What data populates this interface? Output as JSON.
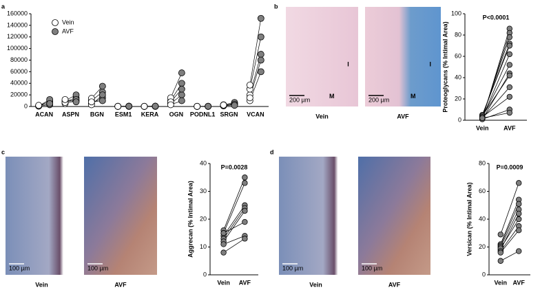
{
  "chart_data": [
    {
      "type": "paired-dot",
      "panel": "a",
      "categories": [
        "ACAN",
        "ASPN",
        "BGN",
        "ESM1",
        "KERA",
        "OGN",
        "PODNL1",
        "SRGN",
        "VCAN"
      ],
      "series": [
        {
          "name": "Vein",
          "color": "#ffffff",
          "values": [
            [
              500,
              1000,
              1500,
              800,
              2000
            ],
            [
              5000,
              8000,
              10000,
              7000,
              12000
            ],
            [
              5000,
              10000,
              14000,
              3000,
              8000
            ],
            [
              200,
              300,
              100,
              400,
              200
            ],
            [
              100,
              200,
              300,
              150,
              250
            ],
            [
              5000,
              10000,
              15000,
              8000,
              3000
            ],
            [
              100,
              200,
              300,
              150,
              200
            ],
            [
              1000,
              2000,
              3000,
              1500,
              2500
            ],
            [
              10000,
              20000,
              30000,
              37000,
              15000
            ]
          ]
        },
        {
          "name": "AVF",
          "color": "#7f7f7f",
          "values": [
            [
              3000,
              6000,
              9000,
              12000,
              5000
            ],
            [
              10000,
              15000,
              20000,
              12000,
              8000
            ],
            [
              15000,
              25000,
              35000,
              20000,
              10000
            ],
            [
              300,
              500,
              200,
              600,
              400
            ],
            [
              200,
              400,
              600,
              300,
              500
            ],
            [
              20000,
              40000,
              58000,
              30000,
              10000
            ],
            [
              200,
              300,
              400,
              250,
              300
            ],
            [
              3000,
              5000,
              7000,
              4000,
              2000
            ],
            [
              60000,
              90000,
              120000,
              152000,
              80000
            ]
          ]
        }
      ],
      "ylim": [
        0,
        160000
      ],
      "yticks": [
        0,
        20000,
        40000,
        60000,
        80000,
        100000,
        120000,
        140000,
        160000
      ]
    },
    {
      "type": "paired",
      "panel": "b",
      "title": "P<0.0001",
      "ylabel": "Proteoglycans (% Intimal Area)",
      "categories": [
        "Vein",
        "AVF"
      ],
      "color": "#7f7f7f",
      "values": [
        [
          1,
          86
        ],
        [
          2,
          82
        ],
        [
          3,
          78
        ],
        [
          4,
          72
        ],
        [
          5,
          70
        ],
        [
          2,
          62
        ],
        [
          3,
          52
        ],
        [
          1,
          44
        ],
        [
          4,
          42
        ],
        [
          2,
          31
        ],
        [
          3,
          22
        ],
        [
          1,
          10
        ],
        [
          2,
          7
        ]
      ],
      "ylim": [
        0,
        100
      ],
      "yticks": [
        0,
        20,
        40,
        60,
        80,
        100
      ]
    },
    {
      "type": "paired",
      "panel": "c",
      "title": "P=0.0028",
      "ylabel": "Aggrecan (% Intimal Area)",
      "categories": [
        "Vein",
        "AVF"
      ],
      "color": "#7f7f7f",
      "values": [
        [
          16,
          35
        ],
        [
          15,
          33
        ],
        [
          14,
          25
        ],
        [
          13,
          24
        ],
        [
          12,
          23
        ],
        [
          15,
          19
        ],
        [
          11,
          14
        ],
        [
          8,
          13
        ]
      ],
      "ylim": [
        0,
        40
      ],
      "yticks": [
        0,
        10,
        20,
        30,
        40
      ]
    },
    {
      "type": "paired",
      "panel": "d",
      "title": "P=0.0009",
      "ylabel": "Versican (% Intimal Area)",
      "categories": [
        "Vein",
        "AVF"
      ],
      "color": "#7f7f7f",
      "values": [
        [
          29,
          66
        ],
        [
          22,
          54
        ],
        [
          21,
          51
        ],
        [
          20,
          47
        ],
        [
          18,
          44
        ],
        [
          19,
          40
        ],
        [
          17,
          35
        ],
        [
          16,
          32
        ],
        [
          10,
          17
        ]
      ],
      "ylim": [
        0,
        80
      ],
      "yticks": [
        0,
        20,
        40,
        60,
        80
      ]
    }
  ],
  "images": [
    {
      "label": "Vein",
      "scale": "200 µm",
      "marks": [
        "M",
        "I"
      ]
    },
    {
      "label": "AVF",
      "scale": "200 µm",
      "marks": [
        "M",
        "I"
      ]
    },
    {
      "label": "Vein",
      "scale": "100 µm"
    },
    {
      "label": "AVF",
      "scale": "100 µm"
    },
    {
      "label": "Vein",
      "scale": "100 µm"
    },
    {
      "label": "AVF",
      "scale": "100 µm"
    }
  ]
}
